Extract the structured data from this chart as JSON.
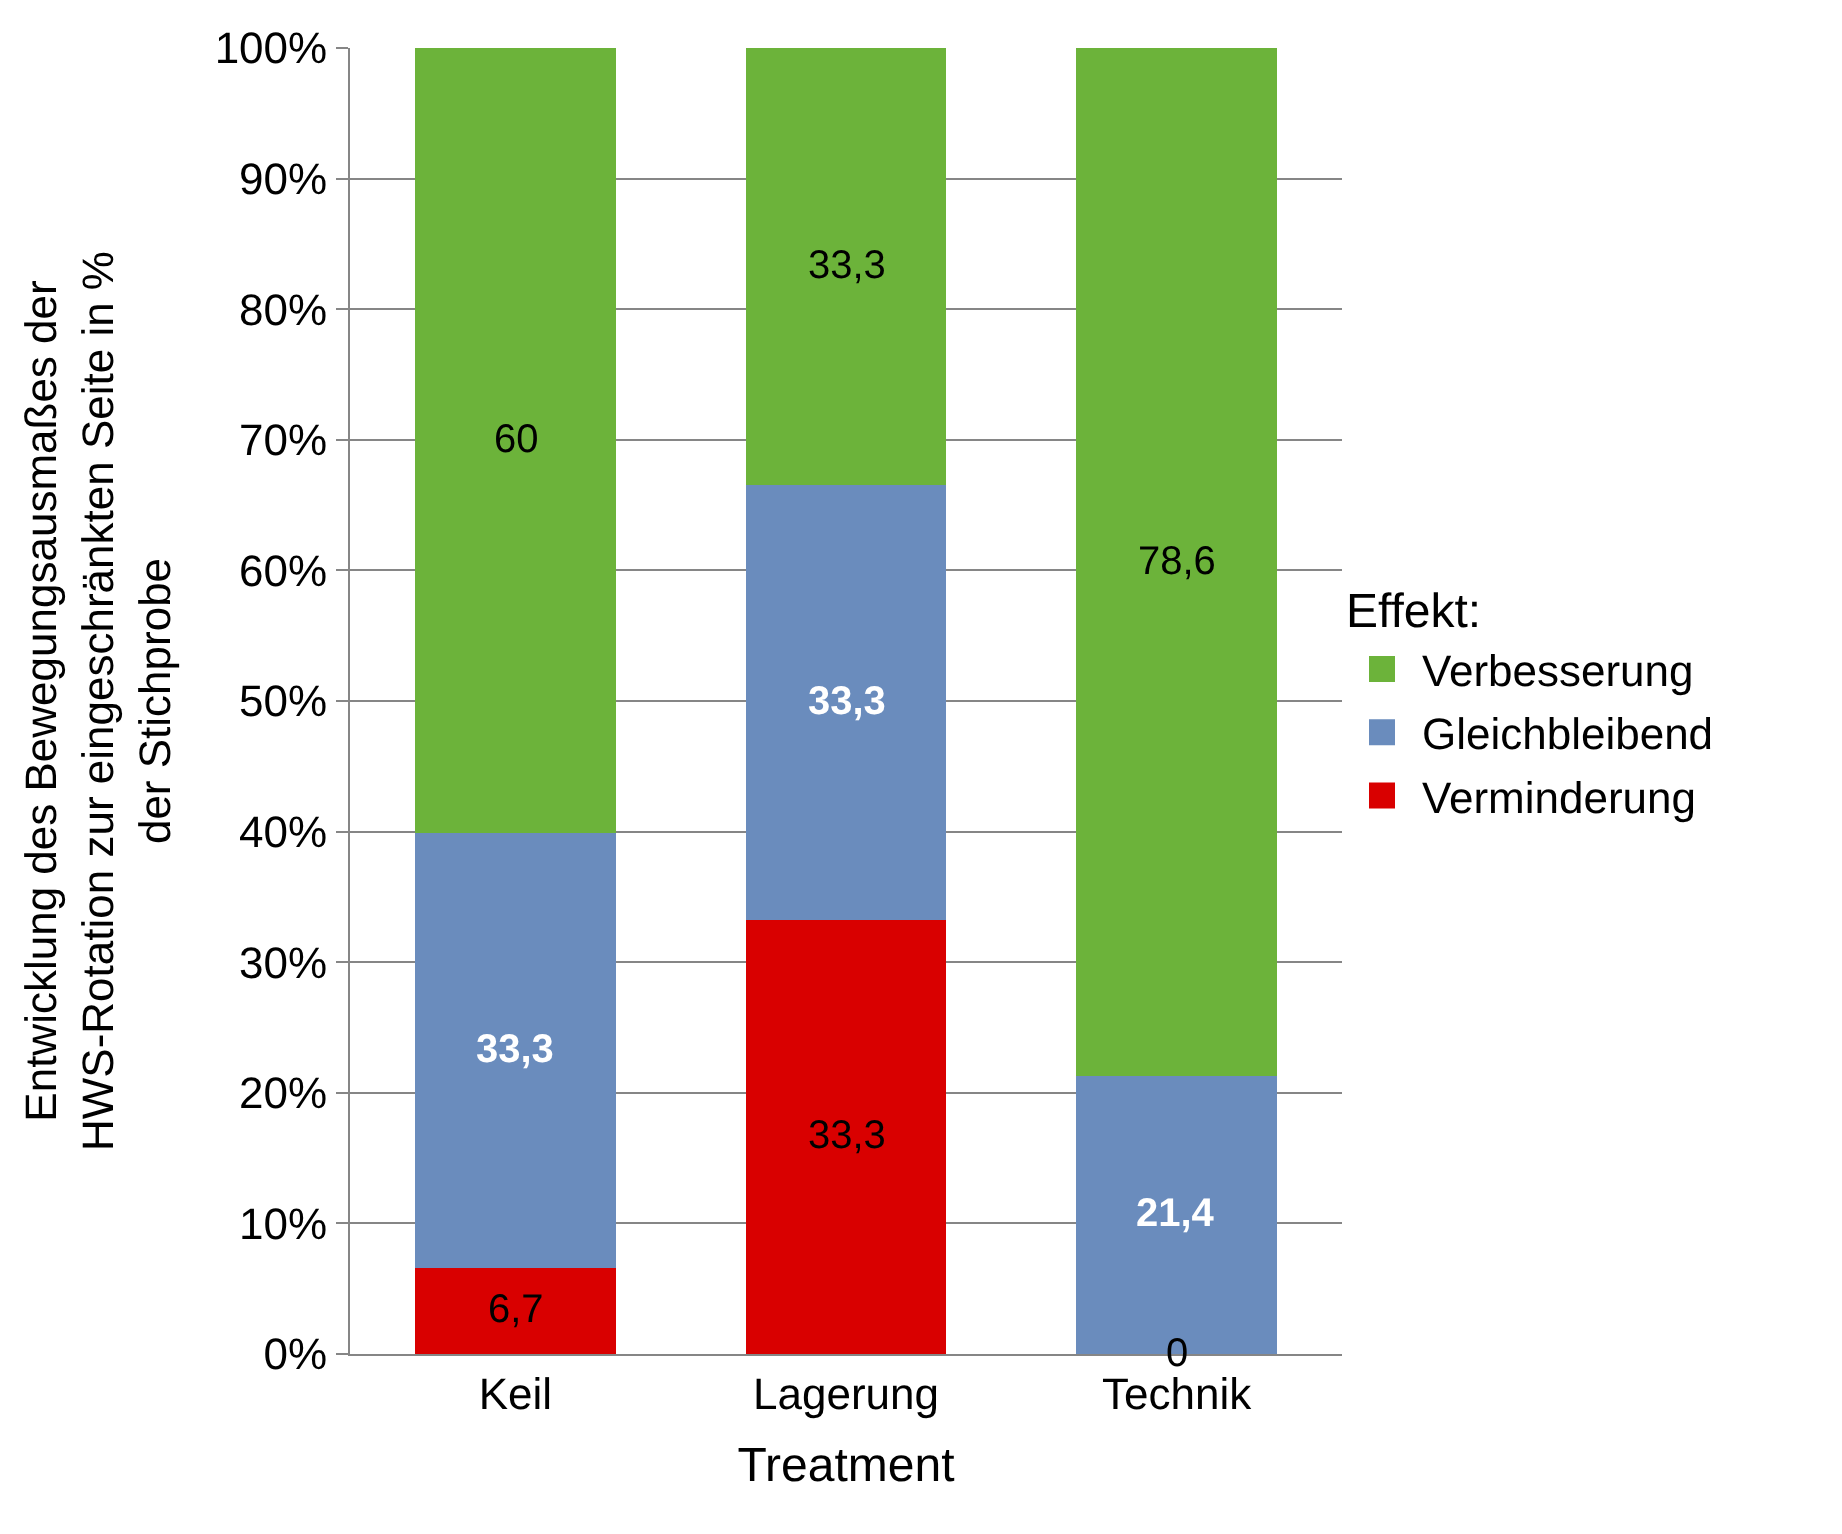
{
  "chart_data": {
    "type": "bar",
    "stacked": true,
    "xlabel": "Treatment",
    "ylabel": "Entwicklung des Bewegungsausmaßes der\nHWS-Rotation zur eingeschränkten Seite in %\nder Stichprobe",
    "legend_title": "Effekt:",
    "legend": "right",
    "categories": [
      "Keil",
      "Lagerung",
      "Technik"
    ],
    "series": [
      {
        "name": "Verminderung",
        "color": "#d90000",
        "values": [
          6.7,
          33.3,
          0
        ],
        "value_labels": [
          "6,7",
          "33,3",
          "0"
        ]
      },
      {
        "name": "Gleichbleibend",
        "color": "#6a8cbd",
        "values": [
          33.3,
          33.3,
          21.4
        ],
        "value_labels": [
          "33,3",
          "33,3",
          "21,4"
        ]
      },
      {
        "name": "Verbesserung",
        "color": "#6cb33a",
        "values": [
          60,
          33.3,
          78.6
        ],
        "value_labels": [
          "60",
          "33,3",
          "78,6"
        ]
      }
    ],
    "ylim": [
      0,
      100
    ],
    "yticks": [
      {
        "value": 0,
        "label": "0%"
      },
      {
        "value": 10,
        "label": "10%"
      },
      {
        "value": 20,
        "label": "20%"
      },
      {
        "value": 30,
        "label": "30%"
      },
      {
        "value": 40,
        "label": "40%"
      },
      {
        "value": 50,
        "label": "50%"
      },
      {
        "value": 60,
        "label": "60%"
      },
      {
        "value": 70,
        "label": "70%"
      },
      {
        "value": 80,
        "label": "80%"
      },
      {
        "value": 90,
        "label": "90%"
      },
      {
        "value": 100,
        "label": "100%"
      }
    ],
    "grid": "y"
  }
}
